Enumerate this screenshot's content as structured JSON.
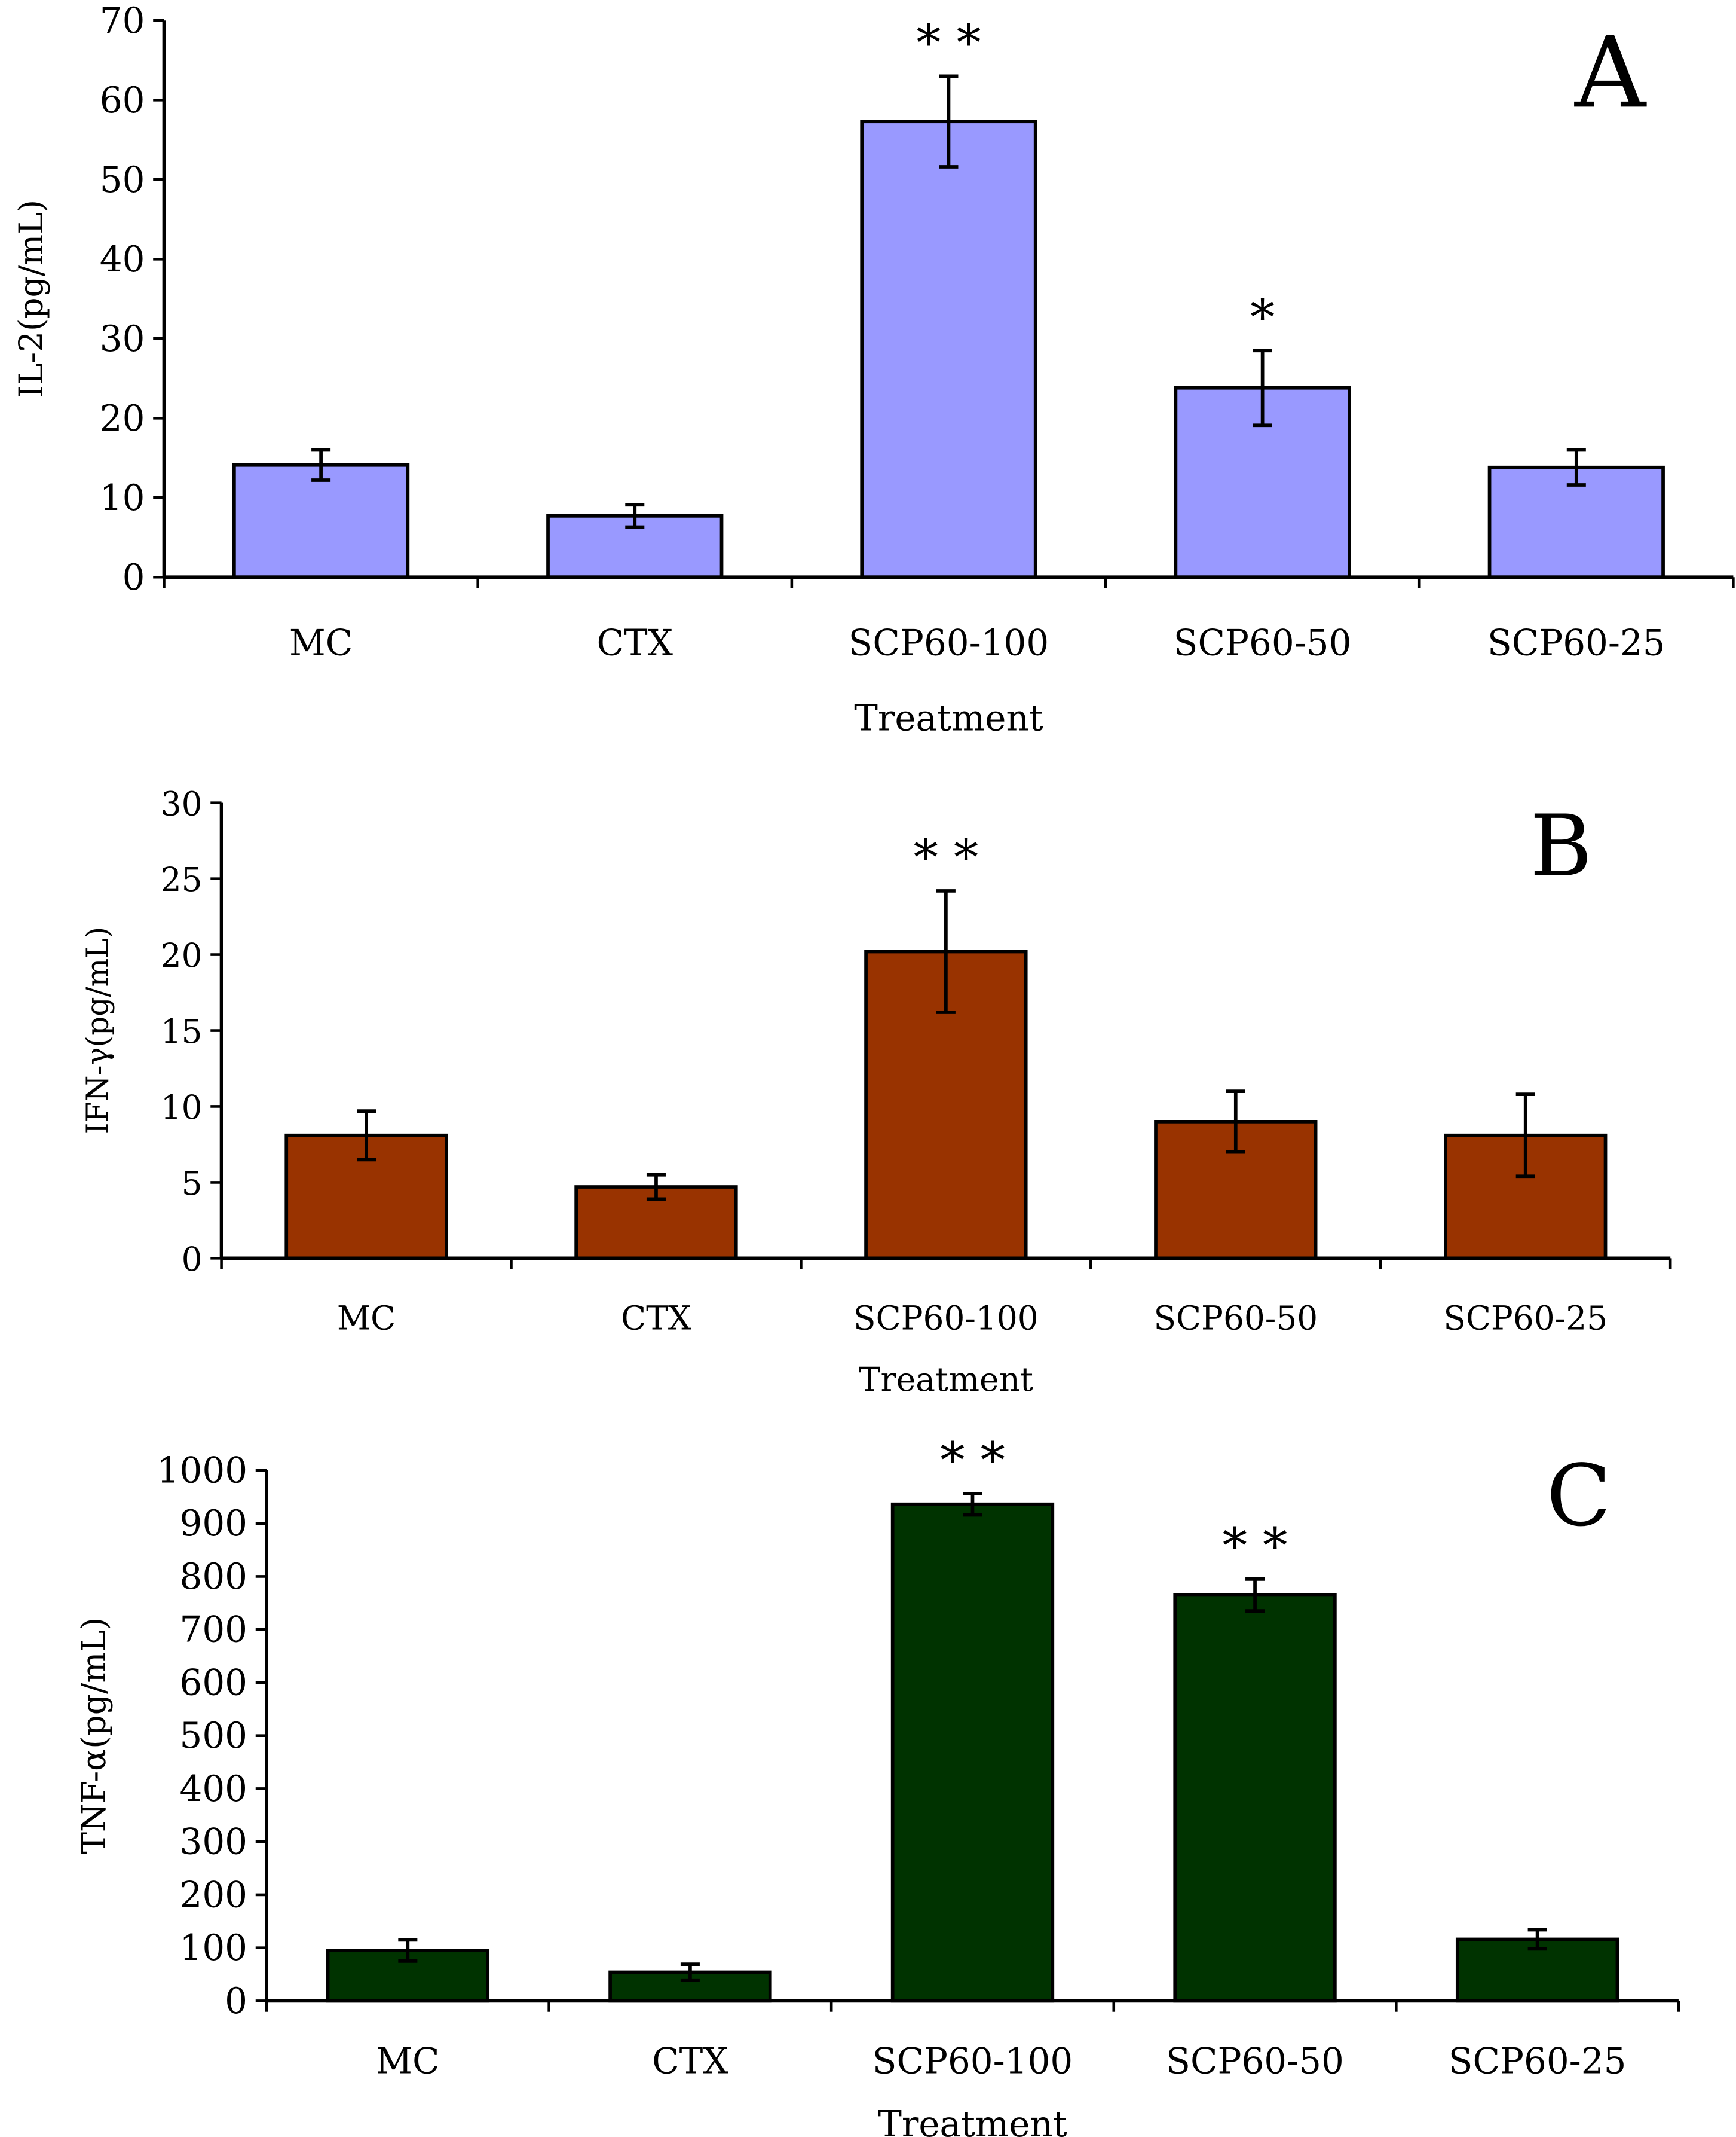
{
  "chart_data": [
    {
      "type": "bar",
      "panel_label": "A",
      "title": "",
      "xlabel": "Treatment",
      "ylabel": "IL-2(pg/mL)",
      "categories": [
        "MC",
        "CTX",
        "SCP60-100",
        "SCP60-50",
        "SCP60-25"
      ],
      "values": [
        14.1,
        7.7,
        57.3,
        23.8,
        13.8
      ],
      "errors": [
        1.9,
        1.4,
        5.7,
        4.7,
        2.2
      ],
      "significance": [
        "",
        "",
        "* *",
        "*",
        ""
      ],
      "ylim": [
        0,
        70
      ],
      "yticks": [
        0,
        10,
        20,
        30,
        40,
        50,
        60,
        70
      ],
      "color": "#9999FF",
      "grid": false
    },
    {
      "type": "bar",
      "panel_label": "B",
      "title": "",
      "xlabel": "Treatment",
      "ylabel": "IFN-γ(pg/mL)",
      "categories": [
        "MC",
        "CTX",
        "SCP60-100",
        "SCP60-50",
        "SCP60-25"
      ],
      "values": [
        8.1,
        4.7,
        20.2,
        9.0,
        8.1
      ],
      "errors": [
        1.6,
        0.8,
        4.0,
        2.0,
        2.7
      ],
      "significance": [
        "",
        "",
        "* *",
        "",
        ""
      ],
      "ylim": [
        0,
        30
      ],
      "yticks": [
        0,
        5,
        10,
        15,
        20,
        25,
        30
      ],
      "color": "#993300",
      "grid": false
    },
    {
      "type": "bar",
      "panel_label": "C",
      "title": "",
      "xlabel": "Treatment",
      "ylabel": "TNF-α(pg/mL)",
      "categories": [
        "MC",
        "CTX",
        "SCP60-100",
        "SCP60-50",
        "SCP60-25"
      ],
      "values": [
        95,
        54,
        936,
        765,
        116
      ],
      "errors": [
        20,
        15,
        20,
        30,
        18
      ],
      "significance": [
        "",
        "",
        "* *",
        "* *",
        ""
      ],
      "ylim": [
        0,
        1000
      ],
      "yticks": [
        0,
        100,
        200,
        300,
        400,
        500,
        600,
        700,
        800,
        900,
        1000
      ],
      "color": "#003300",
      "grid": false
    }
  ]
}
